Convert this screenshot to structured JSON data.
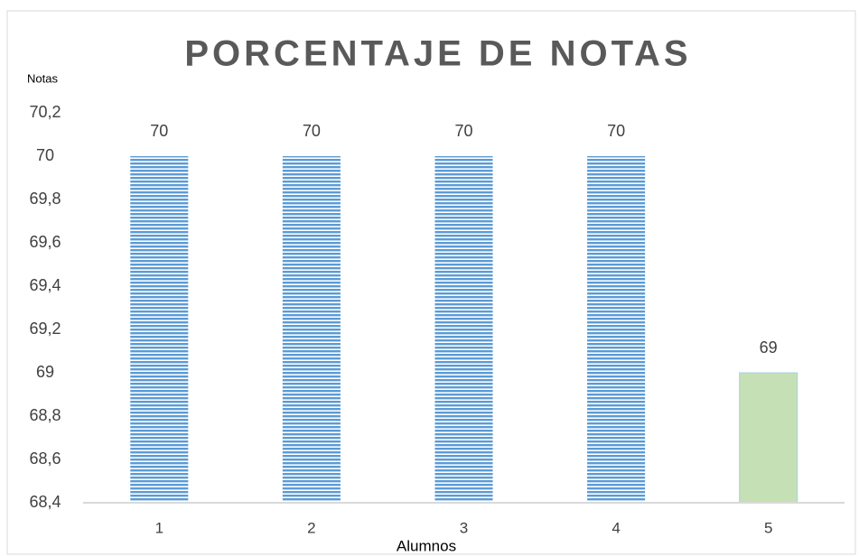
{
  "chart_data": {
    "type": "bar",
    "title": "PORCENTAJE DE NOTAS",
    "y_label": "Notas",
    "x_label": "Alumnos",
    "categories": [
      "1",
      "2",
      "3",
      "4",
      "5"
    ],
    "values": [
      70,
      70,
      70,
      70,
      69
    ],
    "colors": [
      "#5b9bd5",
      "#5b9bd5",
      "#5b9bd5",
      "#5b9bd5",
      "#c5e0b4"
    ],
    "hatch": [
      true,
      true,
      true,
      true,
      false
    ],
    "ylim": [
      68.4,
      70.2
    ],
    "yticks": [
      {
        "value": 68.4,
        "label": "68,4"
      },
      {
        "value": 68.6,
        "label": "68,6"
      },
      {
        "value": 68.8,
        "label": "68,8"
      },
      69,
      {
        "value": 69.2,
        "label": "69,2"
      },
      {
        "value": 69.4,
        "label": "69,4"
      },
      {
        "value": 69.6,
        "label": "69,6"
      },
      {
        "value": 69.8,
        "label": "69,8"
      },
      70,
      {
        "value": 70.2,
        "label": "70,2"
      }
    ],
    "grid": false
  }
}
